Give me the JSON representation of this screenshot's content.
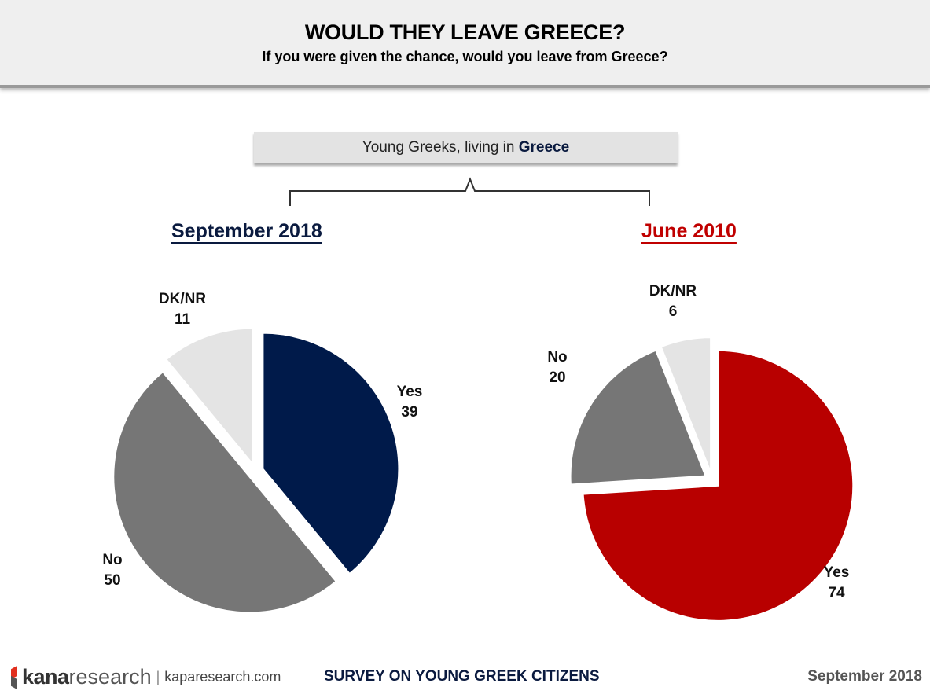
{
  "header": {
    "title": "WOULD THEY LEAVE GREECE?",
    "subtitle": "If you were given the chance, would you leave from Greece?"
  },
  "group": {
    "prefix": "Young Greeks, living in ",
    "emphasis": "Greece"
  },
  "chart_data": [
    {
      "type": "pie",
      "title": "September 2018",
      "title_color": "#0a1a3f",
      "slices": [
        {
          "label": "Yes",
          "value": 39,
          "color": "#001a4a"
        },
        {
          "label": "No",
          "value": 50,
          "color": "#767676"
        },
        {
          "label": "DK/NR",
          "value": 11,
          "color": "#e4e4e4"
        }
      ]
    },
    {
      "type": "pie",
      "title": "June 2010",
      "title_color": "#c00000",
      "slices": [
        {
          "label": "Yes",
          "value": 74,
          "color": "#b80000"
        },
        {
          "label": "No",
          "value": 20,
          "color": "#767676"
        },
        {
          "label": "DK/NR",
          "value": 6,
          "color": "#e4e4e4"
        }
      ]
    }
  ],
  "footer": {
    "logo_kana": "kana",
    "logo_research": "research",
    "url": "kaparesearch.com",
    "survey": "SURVEY ON YOUNG GREEK CITIZENS",
    "date": "September 2018"
  }
}
